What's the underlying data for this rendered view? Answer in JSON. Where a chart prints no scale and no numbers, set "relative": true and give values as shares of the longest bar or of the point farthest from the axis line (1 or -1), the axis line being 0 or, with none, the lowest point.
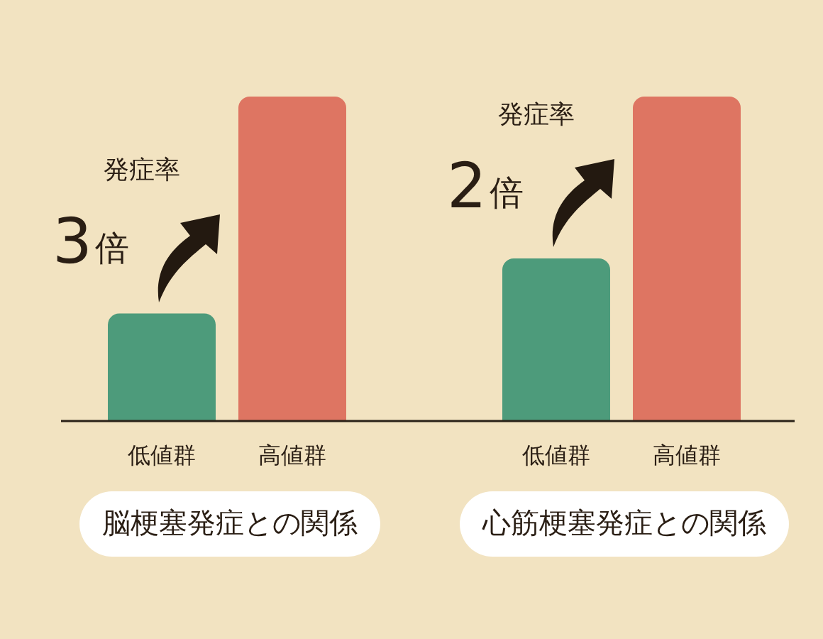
{
  "chart_data": [
    {
      "type": "bar",
      "categories": [
        "低値群",
        "高値群"
      ],
      "values": [
        0.33,
        1
      ],
      "colors": [
        "#4d9b7b",
        "#de7562"
      ],
      "relative": true,
      "xlabel": "脳梗塞発症との関係",
      "annotations": [
        "発症率",
        "3倍"
      ]
    },
    {
      "type": "bar",
      "categories": [
        "低値群",
        "高値群"
      ],
      "values": [
        0.5,
        1
      ],
      "colors": [
        "#4d9b7b",
        "#de7562"
      ],
      "relative": true,
      "xlabel": "心筋梗塞発症との関係",
      "annotations": [
        "発症率",
        "2倍"
      ]
    }
  ]
}
